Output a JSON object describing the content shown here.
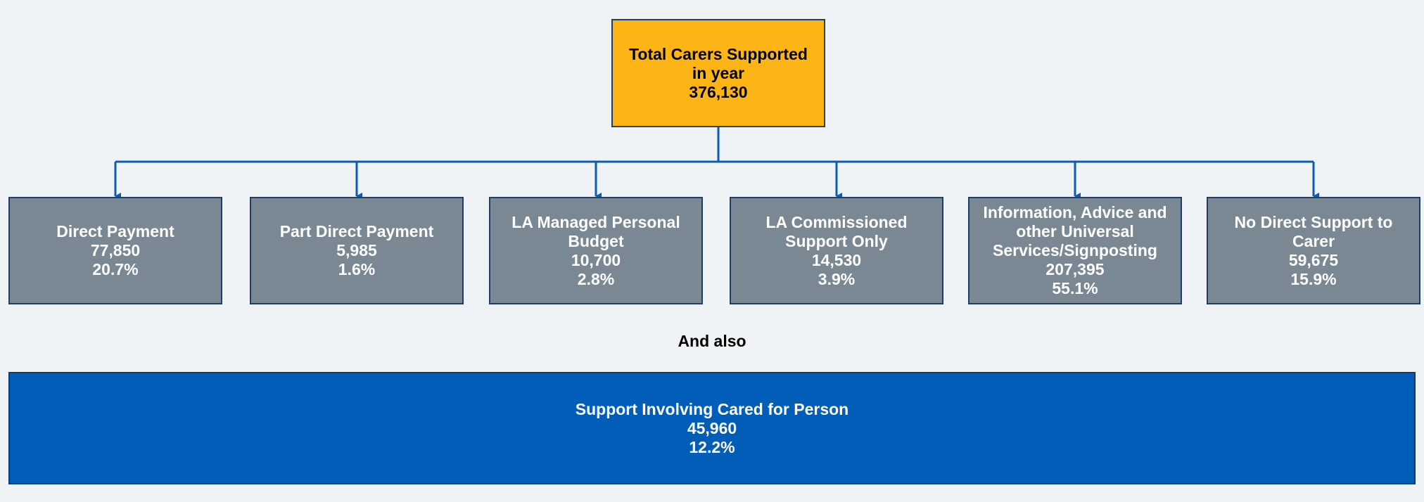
{
  "root": {
    "title_line1": "Total Carers Supported",
    "title_line2": "in year",
    "value": "376,130"
  },
  "children": [
    {
      "lines": [
        "Direct Payment"
      ],
      "value": "77,850",
      "percent": "20.7%"
    },
    {
      "lines": [
        "Part Direct Payment"
      ],
      "value": "5,985",
      "percent": "1.6%"
    },
    {
      "lines": [
        "LA Managed Personal",
        "Budget"
      ],
      "value": "10,700",
      "percent": "2.8%"
    },
    {
      "lines": [
        "LA Commissioned",
        "Support Only"
      ],
      "value": "14,530",
      "percent": "3.9%"
    },
    {
      "lines": [
        "Information, Advice and",
        "other Universal",
        "Services/Signposting"
      ],
      "value": "207,395",
      "percent": "55.1%"
    },
    {
      "lines": [
        "No Direct Support to",
        "Carer"
      ],
      "value": "59,675",
      "percent": "15.9%"
    }
  ],
  "separator_text": "And also",
  "also_box": {
    "title": "Support Involving Cared for Person",
    "value": "45,960",
    "percent": "12.2%"
  },
  "colors": {
    "root_fill": "#fdb515",
    "child_fill": "#7a8894",
    "also_fill": "#015eb8",
    "connector": "#0b5cb5",
    "background": "#eff3f5"
  }
}
